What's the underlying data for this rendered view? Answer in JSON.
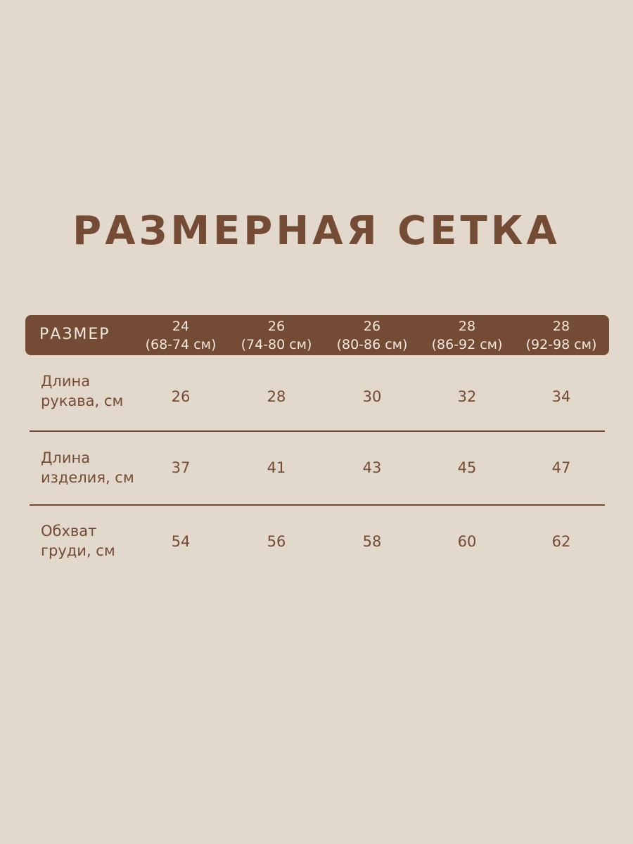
{
  "title": "РАЗМЕРНАЯ СЕТКА",
  "table": {
    "header_label": "РАЗМЕР",
    "columns": [
      {
        "size": "24",
        "range": "(68-74 см)"
      },
      {
        "size": "26",
        "range": "(74-80 см)"
      },
      {
        "size": "26",
        "range": "(80-86 см)"
      },
      {
        "size": "28",
        "range": "(86-92 см)"
      },
      {
        "size": "28",
        "range": "(92-98 см)"
      }
    ],
    "rows": [
      {
        "label_line1": "Длина",
        "label_line2": "рукава, см",
        "values": [
          "26",
          "28",
          "30",
          "32",
          "34"
        ]
      },
      {
        "label_line1": "Длина",
        "label_line2": "изделия, см",
        "values": [
          "37",
          "41",
          "43",
          "45",
          "47"
        ]
      },
      {
        "label_line1": "Обхват",
        "label_line2": "груди, см",
        "values": [
          "54",
          "56",
          "58",
          "60",
          "62"
        ]
      }
    ]
  },
  "colors": {
    "background": "#e3d8cc",
    "accent": "#744b35",
    "header_text": "#f1e7db"
  }
}
